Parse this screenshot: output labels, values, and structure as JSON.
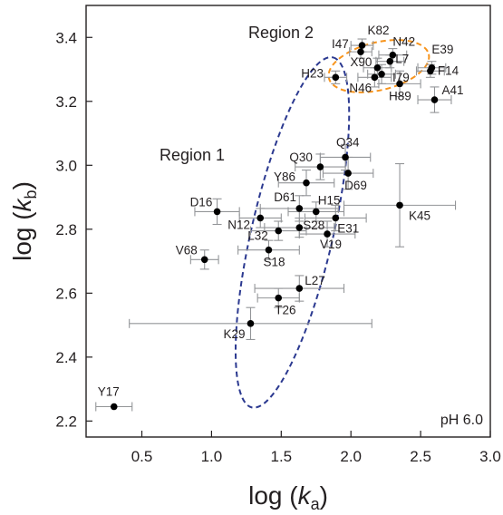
{
  "chart_data": {
    "type": "scatter",
    "xlabel_main": "log (",
    "xlabel_var": "k",
    "xlabel_sub": "a",
    "xlabel_end": ")",
    "ylabel_main": "log (",
    "ylabel_var": "k",
    "ylabel_sub": "b",
    "ylabel_end": ")",
    "xlim": [
      0.1,
      3.0
    ],
    "ylim": [
      2.15,
      3.5
    ],
    "x_ticks": [
      "0.5",
      "1.0",
      "1.5",
      "2.0",
      "2.5",
      "3.0"
    ],
    "x_tick_values": [
      0.5,
      1.0,
      1.5,
      2.0,
      2.5,
      3.0
    ],
    "y_ticks": [
      "2.2",
      "2.4",
      "2.6",
      "2.8",
      "3.0",
      "3.2",
      "3.4"
    ],
    "y_tick_values": [
      2.2,
      2.4,
      2.6,
      2.8,
      3.0,
      3.2,
      3.4
    ],
    "annotation": "pH 6.0",
    "regions": [
      {
        "label": "Region 1",
        "color": "#2b3990",
        "cx": 1.58,
        "cy": 2.79,
        "rx": 0.62,
        "ry": 0.21,
        "angle_deg": 62
      },
      {
        "label": "Region 2",
        "color": "#f7941d",
        "cx": 2.2,
        "cy": 3.31,
        "rx": 0.36,
        "ry": 0.075,
        "angle_deg": 6
      }
    ],
    "points": [
      {
        "label": "Y17",
        "x": 0.3,
        "y": 2.245,
        "xerr": 0.13,
        "yerr": 0.0,
        "lx": -18,
        "ly": -12
      },
      {
        "label": "K29",
        "x": 1.28,
        "y": 2.505,
        "xerr": 0.87,
        "yerr": 0.05,
        "lx": -30,
        "ly": 16
      },
      {
        "label": "T26",
        "x": 1.48,
        "y": 2.585,
        "xerr": 0.15,
        "yerr": 0.03,
        "lx": -4,
        "ly": 18
      },
      {
        "label": "L27",
        "x": 1.63,
        "y": 2.615,
        "xerr": 0.32,
        "yerr": 0.04,
        "lx": 6,
        "ly": -4
      },
      {
        "label": "V68",
        "x": 0.95,
        "y": 2.705,
        "xerr": 0.1,
        "yerr": 0.03,
        "lx": -32,
        "ly": -6
      },
      {
        "label": "S18",
        "x": 1.41,
        "y": 2.735,
        "xerr": 0.22,
        "yerr": 0.03,
        "lx": -6,
        "ly": 18
      },
      {
        "label": "L32",
        "x": 1.48,
        "y": 2.795,
        "xerr": 0.2,
        "yerr": 0.03,
        "lx": -34,
        "ly": 10
      },
      {
        "label": "S28",
        "x": 1.63,
        "y": 2.805,
        "xerr": 0.25,
        "yerr": 0.03,
        "lx": 4,
        "ly": 2
      },
      {
        "label": "V19",
        "x": 1.83,
        "y": 2.785,
        "xerr": 0.2,
        "yerr": 0.04,
        "lx": -8,
        "ly": 16
      },
      {
        "label": "E31",
        "x": 1.89,
        "y": 2.835,
        "xerr": 0.22,
        "yerr": 0.04,
        "lx": 2,
        "ly": 16
      },
      {
        "label": "N12",
        "x": 1.35,
        "y": 2.835,
        "xerr": 0.15,
        "yerr": 0.03,
        "lx": -36,
        "ly": 12
      },
      {
        "label": "D16",
        "x": 1.04,
        "y": 2.855,
        "xerr": 0.16,
        "yerr": 0.04,
        "lx": -30,
        "ly": -6
      },
      {
        "label": "D61",
        "x": 1.63,
        "y": 2.865,
        "xerr": 0.28,
        "yerr": 0.04,
        "lx": -28,
        "ly": -8
      },
      {
        "label": "H15",
        "x": 1.75,
        "y": 2.855,
        "xerr": 0.2,
        "yerr": 0.03,
        "lx": 2,
        "ly": -8
      },
      {
        "label": "K45",
        "x": 2.35,
        "y": 2.875,
        "xerr": 0.4,
        "yerr": 0.13,
        "lx": 10,
        "ly": 16
      },
      {
        "label": "Y86",
        "x": 1.68,
        "y": 2.945,
        "xerr": 0.2,
        "yerr": 0.04,
        "lx": -36,
        "ly": -2
      },
      {
        "label": "D69",
        "x": 1.98,
        "y": 2.975,
        "xerr": 0.18,
        "yerr": 0.05,
        "lx": -4,
        "ly": 18
      },
      {
        "label": "Q30",
        "x": 1.78,
        "y": 2.995,
        "xerr": 0.18,
        "yerr": 0.04,
        "lx": -34,
        "ly": -6
      },
      {
        "label": "Q34",
        "x": 1.96,
        "y": 3.025,
        "xerr": 0.18,
        "yerr": 0.04,
        "lx": -10,
        "ly": -12
      },
      {
        "label": "A41",
        "x": 2.6,
        "y": 3.205,
        "xerr": 0.12,
        "yerr": 0.04,
        "lx": 8,
        "ly": -6
      },
      {
        "label": "H89",
        "x": 2.35,
        "y": 3.255,
        "xerr": 0.15,
        "yerr": 0.04,
        "lx": -12,
        "ly": 18
      },
      {
        "label": "N46",
        "x": 2.17,
        "y": 3.275,
        "xerr": 0.12,
        "yerr": 0.03,
        "lx": -28,
        "ly": 16
      },
      {
        "label": "H23",
        "x": 1.89,
        "y": 3.275,
        "xerr": 0.08,
        "yerr": 0.02,
        "lx": -38,
        "ly": 0
      },
      {
        "label": "I79",
        "x": 2.22,
        "y": 3.285,
        "xerr": 0.1,
        "yerr": 0.03,
        "lx": 12,
        "ly": 8
      },
      {
        "label": "X90",
        "x": 2.19,
        "y": 3.305,
        "xerr": 0.1,
        "yerr": 0.03,
        "lx": -30,
        "ly": -2
      },
      {
        "label": "F14",
        "x": 2.57,
        "y": 3.295,
        "xerr": 0.1,
        "yerr": 0.02,
        "lx": 8,
        "ly": 4
      },
      {
        "label": "E39",
        "x": 2.58,
        "y": 3.305,
        "xerr": 0.1,
        "yerr": 0.02,
        "lx": 0,
        "ly": -16
      },
      {
        "label": "L7",
        "x": 2.28,
        "y": 3.325,
        "xerr": 0.1,
        "yerr": 0.02,
        "lx": 6,
        "ly": 2
      },
      {
        "label": "I47",
        "x": 2.07,
        "y": 3.355,
        "xerr": 0.08,
        "yerr": 0.02,
        "lx": -32,
        "ly": -4
      },
      {
        "label": "N42",
        "x": 2.3,
        "y": 3.345,
        "xerr": 0.1,
        "yerr": 0.02,
        "lx": 0,
        "ly": -10
      },
      {
        "label": "K82",
        "x": 2.08,
        "y": 3.375,
        "xerr": 0.08,
        "yerr": 0.02,
        "lx": 6,
        "ly": -12
      }
    ]
  }
}
